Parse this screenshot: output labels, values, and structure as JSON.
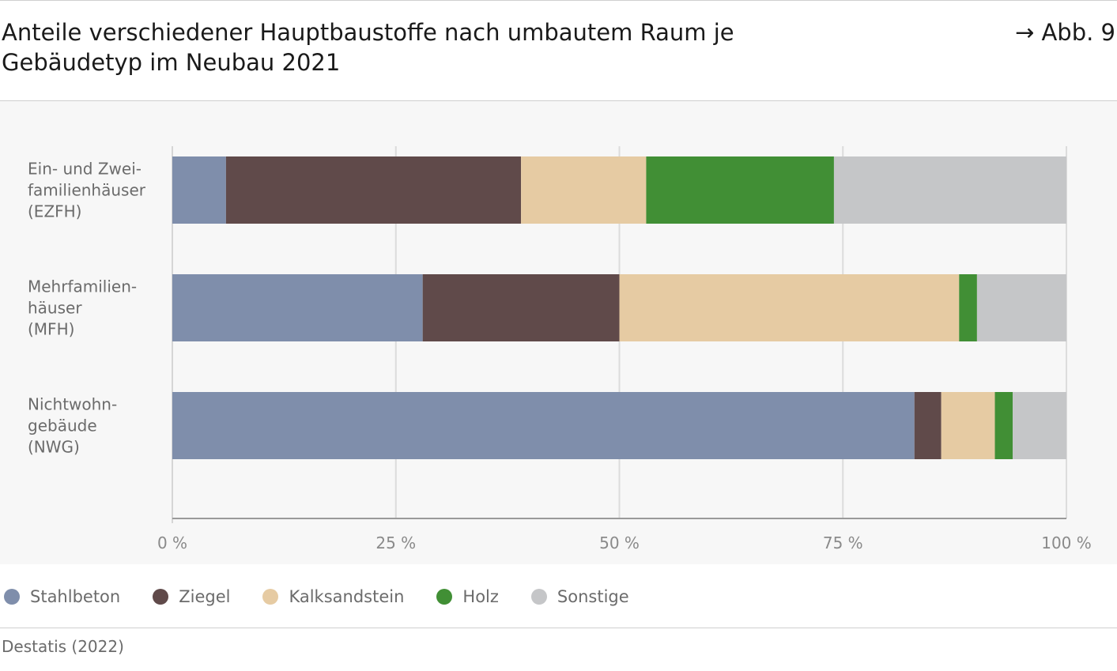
{
  "header": {
    "title": "Anteile verschiedener Hauptbaustoffe nach umbautem Raum je Gebäudetyp im Neubau 2021",
    "figure_ref": "→ Abb. 9"
  },
  "footer": {
    "source": "Destatis (2022)"
  },
  "chart_data": {
    "type": "bar",
    "orientation": "horizontal",
    "stacked": true,
    "title": "Anteile verschiedener Hauptbaustoffe nach umbautem Raum je Gebäudetyp im Neubau 2021",
    "categories": [
      [
        "Ein- und Zwei-",
        "familienhäuser",
        "(EZFH)"
      ],
      [
        "Mehrfamilien-",
        "häuser",
        "(MFH)"
      ],
      [
        "Nichtwohn-",
        "gebäude",
        "(NWG)"
      ]
    ],
    "xlim": [
      0,
      100
    ],
    "x_ticks": [
      0,
      25,
      50,
      75,
      100
    ],
    "x_tick_labels": [
      "0 %",
      "25 %",
      "50 %",
      "75 %",
      "100 %"
    ],
    "grid": "vertical",
    "legend_position": "bottom",
    "series": [
      {
        "name": "Stahlbeton",
        "color": "#7f8eab",
        "values": [
          6,
          28,
          83
        ]
      },
      {
        "name": "Ziegel",
        "color": "#604a4a",
        "values": [
          33,
          22,
          3
        ]
      },
      {
        "name": "Kalksandstein",
        "color": "#e6cba3",
        "values": [
          14,
          38,
          6
        ]
      },
      {
        "name": "Holz",
        "color": "#418f35",
        "values": [
          21,
          2,
          2
        ]
      },
      {
        "name": "Sonstige",
        "color": "#c5c6c8",
        "values": [
          26,
          10,
          6
        ]
      }
    ]
  }
}
